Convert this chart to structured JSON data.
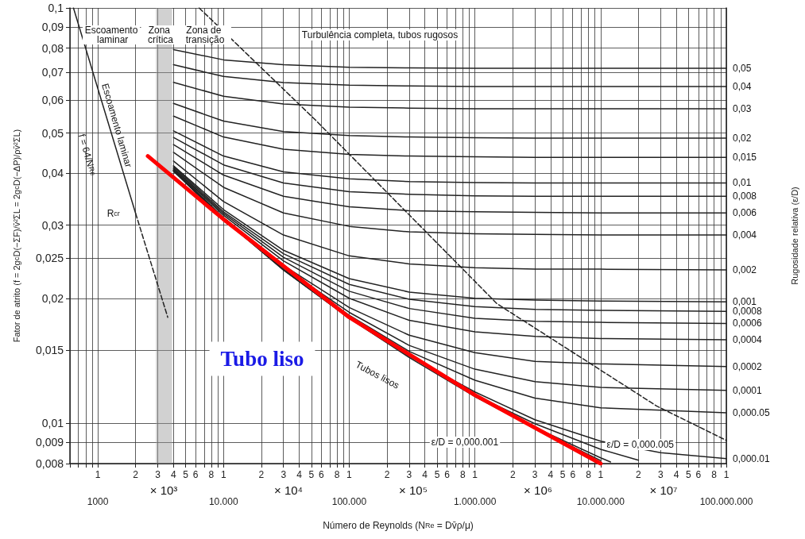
{
  "chart_data": {
    "type": "line",
    "xlabel": "Número de Reynolds (N$_{Re}$ = Dv̄ρ/μ)",
    "ylabel": "Fator de atrito (f = 2g$_{c}$D(−ΣF)/v̄²ΣL = 2g$_{c}$D(−ΔP)/ρv̄²ΣL)",
    "y2label": "Rugosidade relativa (ε/D)",
    "annotations": [
      "Escoamento laminar",
      "Zona crítica",
      "Zona de transição",
      "Turbulência completa, tubos rugosos",
      "Escoamento laminar",
      "f = 64/N$_{Re}$",
      {
        "text": "R$_{cr}$",
        "x": 2000,
        "y": 0.032
      },
      {
        "text": "Tubos lisos",
        "x": 300000,
        "y": 0.0144
      },
      "ε/D = 0,000.001",
      {
        "text": "ε/D = 0,000.005",
        "x": 10000000,
        "y": 0.0087
      },
      "Tubo liso",
      "× 10³",
      "× 10⁴",
      "× 10⁵",
      "× 10⁶",
      "× 10⁷",
      "1 2 3 4 5 6 8",
      "1 2 3 4 5 6 8",
      "1 2 3 4 5 6 8",
      "1 2 3 4 5 6 8",
      "1 2 3 4 5 6 8",
      "1"
    ],
    "x": [
      4000,
      10000,
      30000,
      100000,
      300000,
      1000000,
      3000000,
      10000000,
      100000000
    ],
    "xlim": [
      600,
      100000000
    ],
    "ylim": [
      0.008,
      0.1
    ],
    "log": "xy",
    "grid": true,
    "legend": false,
    "marker": "none",
    "line_style": "solid",
    "xticks": [
      {
        "value": 600,
        "label": null
      },
      {
        "value": 700,
        "label": null
      },
      {
        "value": 800,
        "label": null
      },
      {
        "value": 900,
        "label": null
      },
      {
        "value": 1000,
        "label": "1000"
      },
      {
        "value": 2000,
        "label": null
      },
      {
        "value": 3000,
        "label": null
      },
      {
        "value": 4000,
        "label": null
      },
      {
        "value": 5000,
        "label": null
      },
      {
        "value": 6000,
        "label": null
      },
      {
        "value": 7000,
        "label": null
      },
      {
        "value": 8000,
        "label": null
      },
      {
        "value": 9000,
        "label": null
      },
      {
        "value": 10000,
        "label": "10.000"
      },
      {
        "value": 20000,
        "label": null
      },
      {
        "value": 30000,
        "label": null
      },
      {
        "value": 40000,
        "label": null
      },
      {
        "value": 50000,
        "label": null
      },
      {
        "value": 60000,
        "label": null
      },
      {
        "value": 70000,
        "label": null
      },
      {
        "value": 80000,
        "label": null
      },
      {
        "value": 90000,
        "label": null
      },
      {
        "value": 100000,
        "label": "100.000"
      },
      {
        "value": 200000,
        "label": null
      },
      {
        "value": 300000,
        "label": null
      },
      {
        "value": 400000,
        "label": null
      },
      {
        "value": 500000,
        "label": null
      },
      {
        "value": 600000,
        "label": null
      },
      {
        "value": 700000,
        "label": null
      },
      {
        "value": 800000,
        "label": null
      },
      {
        "value": 900000,
        "label": null
      },
      {
        "value": 1000000,
        "label": "1.000.000"
      },
      {
        "value": 2000000,
        "label": null
      },
      {
        "value": 3000000,
        "label": null
      },
      {
        "value": 4000000,
        "label": null
      },
      {
        "value": 5000000,
        "label": null
      },
      {
        "value": 6000000,
        "label": null
      },
      {
        "value": 7000000,
        "label": null
      },
      {
        "value": 8000000,
        "label": null
      },
      {
        "value": 9000000,
        "label": null
      },
      {
        "value": 10000000,
        "label": "10.000.000"
      },
      {
        "value": 20000000,
        "label": null
      },
      {
        "value": 30000000,
        "label": null
      },
      {
        "value": 40000000,
        "label": null
      },
      {
        "value": 50000000,
        "label": null
      },
      {
        "value": 60000000,
        "label": null
      },
      {
        "value": 70000000,
        "label": null
      },
      {
        "value": 80000000,
        "label": null
      },
      {
        "value": 90000000,
        "label": null
      },
      {
        "value": 100000000,
        "label": "100.000.000"
      }
    ],
    "yticks": [
      {
        "value": 0.008,
        "label": "0,008"
      },
      {
        "value": 0.009,
        "label": "0,009"
      },
      {
        "value": 0.01,
        "label": "0,01"
      },
      {
        "value": 0.015,
        "label": "0,015"
      },
      {
        "value": 0.02,
        "label": "0,02"
      },
      {
        "value": 0.025,
        "label": "0,025"
      },
      {
        "value": 0.03,
        "label": "0,03"
      },
      {
        "value": 0.04,
        "label": "0,04"
      },
      {
        "value": 0.05,
        "label": "0,05"
      },
      {
        "value": 0.06,
        "label": "0,06"
      },
      {
        "value": 0.07,
        "label": "0,07"
      },
      {
        "value": 0.08,
        "label": "0,08"
      },
      {
        "value": 0.09,
        "label": "0,09"
      },
      {
        "value": 0.1,
        "label": "0,1"
      }
    ],
    "bands": [
      {
        "axis": "x",
        "from": 2900,
        "to": 3900,
        "color": "#9a9a9a"
      }
    ],
    "series": [
      {
        "name": "0,05",
        "color": "#222222",
        "values": [
          0.0794,
          0.075,
          0.073,
          0.072,
          0.0717,
          0.0716,
          0.0716,
          0.0716,
          0.0716
        ]
      },
      {
        "name": "0,04",
        "color": "#222222",
        "values": [
          0.073,
          0.0684,
          0.0661,
          0.0652,
          0.0649,
          0.0647,
          0.0647,
          0.0647,
          0.0647
        ]
      },
      {
        "name": "0,03",
        "color": "#222222",
        "values": [
          0.0662,
          0.0613,
          0.0587,
          0.0577,
          0.0574,
          0.0572,
          0.0572,
          0.0572,
          0.0572
        ]
      },
      {
        "name": "0,02",
        "color": "#222222",
        "values": [
          0.0589,
          0.0534,
          0.0504,
          0.0493,
          0.0489,
          0.0487,
          0.0486,
          0.0486,
          0.0486
        ]
      },
      {
        "name": "0,015",
        "color": "#222222",
        "values": [
          0.0549,
          0.0489,
          0.0457,
          0.0444,
          0.044,
          0.0438,
          0.0437,
          0.0437,
          0.0437
        ]
      },
      {
        "name": "0,01",
        "color": "#222222",
        "values": [
          0.0506,
          0.044,
          0.0403,
          0.0388,
          0.0382,
          0.038,
          0.0379,
          0.0379,
          0.0379
        ]
      },
      {
        "name": "0,008",
        "color": "#222222",
        "values": [
          0.0488,
          0.0419,
          0.0379,
          0.0361,
          0.0356,
          0.0353,
          0.0352,
          0.0352,
          0.0352
        ]
      },
      {
        "name": "0,006",
        "color": "#222222",
        "values": [
          0.0469,
          0.0396,
          0.0352,
          0.0332,
          0.0325,
          0.0323,
          0.0322,
          0.0321,
          0.0321
        ]
      },
      {
        "name": "0,004",
        "color": "#222222",
        "values": [
          0.0449,
          0.037,
          0.0321,
          0.0298,
          0.0289,
          0.0286,
          0.0285,
          0.0284,
          0.0284
        ]
      },
      {
        "name": "0,002",
        "color": "#222222",
        "values": [
          0.0428,
          0.0342,
          0.0284,
          0.0253,
          0.0242,
          0.0237,
          0.0235,
          0.0235,
          0.0234
        ]
      },
      {
        "name": "0,001",
        "color": "#222222",
        "values": [
          0.0417,
          0.0327,
          0.0261,
          0.0223,
          0.0207,
          0.02,
          0.0198,
          0.0197,
          0.0196
        ]
      },
      {
        "name": "0,0008",
        "color": "#222222",
        "values": [
          0.0415,
          0.0323,
          0.0256,
          0.0216,
          0.0199,
          0.0191,
          0.0188,
          0.0187,
          0.0186
        ]
      },
      {
        "name": "0,0006",
        "color": "#222222",
        "values": [
          0.0412,
          0.032,
          0.0251,
          0.0208,
          0.0189,
          0.0179,
          0.0176,
          0.0175,
          0.0174
        ]
      },
      {
        "name": "0,0004",
        "color": "#222222",
        "values": [
          0.041,
          0.0317,
          0.0246,
          0.02,
          0.0177,
          0.0166,
          0.0162,
          0.016,
          0.0159
        ]
      },
      {
        "name": "0,0002",
        "color": "#222222",
        "values": [
          0.0408,
          0.0313,
          0.024,
          0.019,
          0.0163,
          0.0148,
          0.0141,
          0.0139,
          0.0137
        ]
      },
      {
        "name": "0,0001",
        "color": "#222222",
        "values": [
          0.0406,
          0.0311,
          0.0237,
          0.0185,
          0.0154,
          0.0135,
          0.0126,
          0.0122,
          0.012
        ]
      },
      {
        "name": "0,000.05",
        "color": "#222222",
        "values": [
          0.0406,
          0.0311,
          0.0235,
          0.0182,
          0.0149,
          0.0127,
          0.0115,
          0.0109,
          0.0106
        ]
      },
      {
        "name": "0,000.01",
        "color": "#222222",
        "x": [
          4000,
          10000,
          30000,
          100000,
          300000,
          1000000,
          3000000,
          10000000,
          30000000,
          100000000
        ],
        "values": [
          0.0405,
          0.031,
          0.0234,
          0.0179,
          0.0145,
          0.0119,
          0.0102,
          0.00906,
          0.0085,
          0.00822
        ]
      },
      {
        "color": "#222222",
        "x": [
          1000000,
          3000000,
          10000000,
          20000000
        ],
        "values": [
          0.0117,
          0.00998,
          0.00866,
          0.00815
        ]
      },
      {
        "color": "#222222",
        "x": [
          1000000,
          3000000,
          10000000,
          12000000
        ],
        "values": [
          0.0116,
          0.00978,
          0.00826,
          0.00807
        ]
      },
      {
        "color": "#222222",
        "x": [
          4000,
          10000,
          30000,
          100000,
          300000,
          1000000,
          3000000,
          10000000
        ],
        "values": [
          0.0405,
          0.031,
          0.0234,
          0.0179,
          0.0144,
          0.0116,
          0.00973,
          0.00814
        ]
      },
      {
        "color": "#222222",
        "x": [
          640,
          1000,
          2000
        ],
        "values": [
          0.1,
          0.064,
          0.032
        ]
      },
      {
        "color": "#222222",
        "line_style": "dashed",
        "x": [
          2000,
          3600
        ],
        "values": [
          0.032,
          0.018
        ]
      },
      {
        "color": "#222222",
        "line_style": "dashed",
        "x": [
          6400,
          54000,
          1500000,
          28000000,
          100000000
        ],
        "values": [
          0.1,
          0.0537,
          0.0194,
          0.011,
          0.0091
        ]
      },
      {
        "color": "#ff0000",
        "x": [
          2500,
          10000,
          100000,
          1000000,
          10000000
        ],
        "values": [
          0.044,
          0.031,
          0.018,
          0.0117,
          0.008
        ]
      }
    ]
  }
}
